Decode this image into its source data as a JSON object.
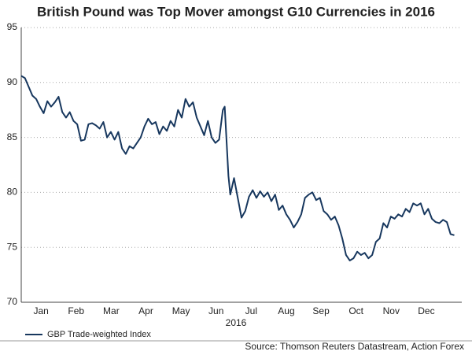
{
  "chart_data": {
    "type": "line",
    "title": "British Pound was Top Mover amongst G10 Currencies in 2016",
    "xlabel": "2016",
    "source": "Source: Thomson Reuters Datastream, Action Forex",
    "x": [
      0,
      0.1,
      0.2,
      0.3,
      0.4,
      0.5,
      0.6,
      0.7,
      0.8,
      0.9,
      1.0,
      1.1,
      1.2,
      1.3,
      1.4,
      1.5,
      1.6,
      1.7,
      1.8,
      1.9,
      2.0,
      2.1,
      2.2,
      2.3,
      2.4,
      2.5,
      2.6,
      2.7,
      2.8,
      2.9,
      3.0,
      3.1,
      3.2,
      3.3,
      3.4,
      3.5,
      3.6,
      3.7,
      3.8,
      3.9,
      4.0,
      4.1,
      4.2,
      4.3,
      4.4,
      4.5,
      4.6,
      4.7,
      4.8,
      4.9,
      5.0,
      5.1,
      5.2,
      5.3,
      5.4,
      5.45,
      5.55,
      5.6,
      5.7,
      5.8,
      5.9,
      6.0,
      6.1,
      6.2,
      6.3,
      6.4,
      6.5,
      6.6,
      6.7,
      6.8,
      6.9,
      7.0,
      7.1,
      7.2,
      7.3,
      7.4,
      7.5,
      7.6,
      7.7,
      7.8,
      7.9,
      8.0,
      8.1,
      8.2,
      8.3,
      8.4,
      8.5,
      8.6,
      8.7,
      8.8,
      8.9,
      9.0,
      9.1,
      9.2,
      9.3,
      9.4,
      9.5,
      9.6,
      9.7,
      9.8,
      9.9,
      10.0,
      10.1,
      10.2,
      10.3,
      10.4,
      10.5,
      10.6,
      10.7,
      10.8,
      10.9,
      11.0,
      11.1,
      11.2,
      11.3,
      11.4,
      11.5,
      11.6
    ],
    "series": [
      {
        "name": "GBP Trade-weighted Index",
        "color": "#17375e",
        "values": [
          90.6,
          90.4,
          89.6,
          88.8,
          88.5,
          87.8,
          87.2,
          88.3,
          87.8,
          88.2,
          88.7,
          87.3,
          86.8,
          87.3,
          86.5,
          86.2,
          84.7,
          84.8,
          86.2,
          86.3,
          86.1,
          85.8,
          86.4,
          85.0,
          85.5,
          84.8,
          85.5,
          84.0,
          83.5,
          84.2,
          84.0,
          84.5,
          85.0,
          86.0,
          86.7,
          86.2,
          86.4,
          85.3,
          86.0,
          85.6,
          86.5,
          86.0,
          87.5,
          86.8,
          88.5,
          87.8,
          88.2,
          86.8,
          86.0,
          85.2,
          86.5,
          85.0,
          84.5,
          84.8,
          87.5,
          87.8,
          81.5,
          79.8,
          81.3,
          79.5,
          77.7,
          78.3,
          79.6,
          80.2,
          79.5,
          80.1,
          79.6,
          80.0,
          79.2,
          79.8,
          78.4,
          78.8,
          78.0,
          77.5,
          76.8,
          77.3,
          78.0,
          79.5,
          79.8,
          80.0,
          79.3,
          79.5,
          78.3,
          78.0,
          77.5,
          77.8,
          77.0,
          75.8,
          74.3,
          73.8,
          74.0,
          74.6,
          74.3,
          74.5,
          74.0,
          74.3,
          75.5,
          75.8,
          77.2,
          76.8,
          77.8,
          77.6,
          78.0,
          77.8,
          78.5,
          78.2,
          79.0,
          78.8,
          79.0,
          78.0,
          78.5,
          77.6,
          77.3,
          77.2,
          77.5,
          77.3,
          76.2,
          76.1
        ]
      }
    ],
    "xlim": [
      0,
      11.8
    ],
    "xticks": [
      {
        "value": 0.53,
        "label": "Jan"
      },
      {
        "value": 1.47,
        "label": "Feb"
      },
      {
        "value": 2.41,
        "label": "Mar"
      },
      {
        "value": 3.34,
        "label": "Apr"
      },
      {
        "value": 4.28,
        "label": "May"
      },
      {
        "value": 5.22,
        "label": "Jun"
      },
      {
        "value": 6.16,
        "label": "Jul"
      },
      {
        "value": 7.1,
        "label": "Aug"
      },
      {
        "value": 8.03,
        "label": "Sep"
      },
      {
        "value": 8.97,
        "label": "Oct"
      },
      {
        "value": 9.91,
        "label": "Nov"
      },
      {
        "value": 10.85,
        "label": "Dec"
      }
    ],
    "ylim": [
      70,
      95
    ],
    "yticks": [
      70,
      75,
      80,
      85,
      90,
      95
    ],
    "grid": true,
    "legend": "bottom-left"
  }
}
